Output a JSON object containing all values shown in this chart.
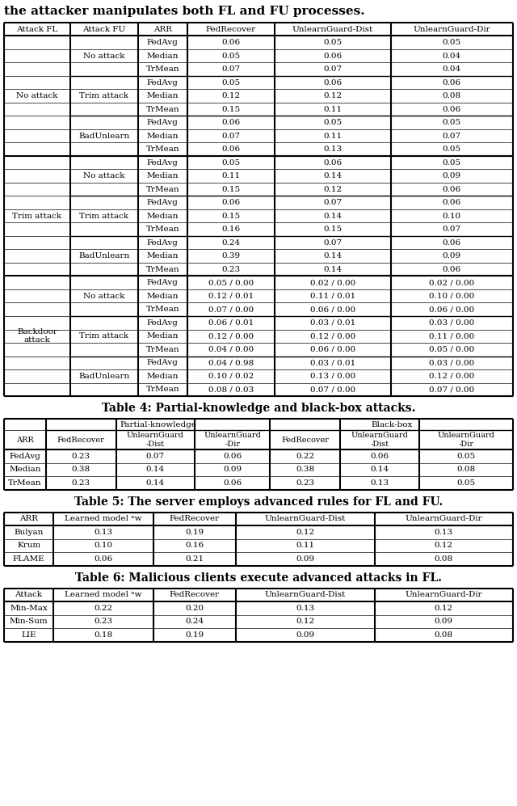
{
  "header_text": "the attacker manipulates both FL and FU processes.",
  "table4_title": "Table 4: Partial-knowledge and black-box attacks.",
  "table5_title": "Table 5: The server employs advanced rules for FL and FU.",
  "table6_title": "Table 6: Malicious clients execute advanced attacks in FL.",
  "table3_col_headers": [
    "Attack FL",
    "Attack FU",
    "ARR",
    "FedRecover",
    "UnlearnGuard-Dist",
    "UnlearnGuard-Dir"
  ],
  "table3_rows": [
    [
      "No attack",
      "No attack",
      "FedAvg",
      "0.06",
      "0.05",
      "0.05"
    ],
    [
      "No attack",
      "No attack",
      "Median",
      "0.05",
      "0.06",
      "0.04"
    ],
    [
      "No attack",
      "No attack",
      "TrMean",
      "0.07",
      "0.07",
      "0.04"
    ],
    [
      "No attack",
      "Trim attack",
      "FedAvg",
      "0.05",
      "0.06",
      "0.06"
    ],
    [
      "No attack",
      "Trim attack",
      "Median",
      "0.12",
      "0.12",
      "0.08"
    ],
    [
      "No attack",
      "Trim attack",
      "TrMean",
      "0.15",
      "0.11",
      "0.06"
    ],
    [
      "No attack",
      "BadUnlearn",
      "FedAvg",
      "0.06",
      "0.05",
      "0.05"
    ],
    [
      "No attack",
      "BadUnlearn",
      "Median",
      "0.07",
      "0.11",
      "0.07"
    ],
    [
      "No attack",
      "BadUnlearn",
      "TrMean",
      "0.06",
      "0.13",
      "0.05"
    ],
    [
      "Trim attack",
      "No attack",
      "FedAvg",
      "0.05",
      "0.06",
      "0.05"
    ],
    [
      "Trim attack",
      "No attack",
      "Median",
      "0.11",
      "0.14",
      "0.09"
    ],
    [
      "Trim attack",
      "No attack",
      "TrMean",
      "0.15",
      "0.12",
      "0.06"
    ],
    [
      "Trim attack",
      "Trim attack",
      "FedAvg",
      "0.06",
      "0.07",
      "0.06"
    ],
    [
      "Trim attack",
      "Trim attack",
      "Median",
      "0.15",
      "0.14",
      "0.10"
    ],
    [
      "Trim attack",
      "Trim attack",
      "TrMean",
      "0.16",
      "0.15",
      "0.07"
    ],
    [
      "Trim attack",
      "BadUnlearn",
      "FedAvg",
      "0.24",
      "0.07",
      "0.06"
    ],
    [
      "Trim attack",
      "BadUnlearn",
      "Median",
      "0.39",
      "0.14",
      "0.09"
    ],
    [
      "Trim attack",
      "BadUnlearn",
      "TrMean",
      "0.23",
      "0.14",
      "0.06"
    ],
    [
      "Backdoor\nattack",
      "No attack",
      "FedAvg",
      "0.05 / 0.00",
      "0.02 / 0.00",
      "0.02 / 0.00"
    ],
    [
      "Backdoor\nattack",
      "No attack",
      "Median",
      "0.12 / 0.01",
      "0.11 / 0.01",
      "0.10 / 0.00"
    ],
    [
      "Backdoor\nattack",
      "No attack",
      "TrMean",
      "0.07 / 0.00",
      "0.06 / 0.00",
      "0.06 / 0.00"
    ],
    [
      "Backdoor\nattack",
      "Trim attack",
      "FedAvg",
      "0.06 / 0.01",
      "0.03 / 0.01",
      "0.03 / 0.00"
    ],
    [
      "Backdoor\nattack",
      "Trim attack",
      "Median",
      "0.12 / 0.00",
      "0.12 / 0.00",
      "0.11 / 0.00"
    ],
    [
      "Backdoor\nattack",
      "Trim attack",
      "TrMean",
      "0.04 / 0.00",
      "0.06 / 0.00",
      "0.05 / 0.00"
    ],
    [
      "Backdoor\nattack",
      "BadUnlearn",
      "FedAvg",
      "0.04 / 0.98",
      "0.03 / 0.01",
      "0.03 / 0.00"
    ],
    [
      "Backdoor\nattack",
      "BadUnlearn",
      "Median",
      "0.10 / 0.02",
      "0.13 / 0.00",
      "0.12 / 0.00"
    ],
    [
      "Backdoor\nattack",
      "BadUnlearn",
      "TrMean",
      "0.08 / 0.03",
      "0.07 / 0.00",
      "0.07 / 0.00"
    ]
  ],
  "table3_fl_groups": [
    [
      0,
      9,
      "No attack"
    ],
    [
      9,
      18,
      "Trim attack"
    ],
    [
      18,
      27,
      "Backdoor\nattack"
    ]
  ],
  "table3_fu_groups": [
    [
      0,
      3,
      "No attack"
    ],
    [
      3,
      6,
      "Trim attack"
    ],
    [
      6,
      9,
      "BadUnlearn"
    ],
    [
      9,
      12,
      "No attack"
    ],
    [
      12,
      15,
      "Trim attack"
    ],
    [
      15,
      18,
      "BadUnlearn"
    ],
    [
      18,
      21,
      "No attack"
    ],
    [
      21,
      24,
      "Trim attack"
    ],
    [
      24,
      27,
      "BadUnlearn"
    ]
  ],
  "table4_col_headers": [
    "ARR",
    "FedRecover",
    "UnlearnGuard\n-Dist",
    "UnlearnGuard\n-Dir",
    "FedRecover",
    "UnlearnGuard\n-Dist",
    "UnlearnGuard\n-Dir"
  ],
  "table4_rows": [
    [
      "FedAvg",
      "0.23",
      "0.07",
      "0.06",
      "0.22",
      "0.06",
      "0.05"
    ],
    [
      "Median",
      "0.38",
      "0.14",
      "0.09",
      "0.38",
      "0.14",
      "0.08"
    ],
    [
      "TrMean",
      "0.23",
      "0.14",
      "0.06",
      "0.23",
      "0.13",
      "0.05"
    ]
  ],
  "table5_col_headers": [
    "ARR",
    "Learned model ⁿw",
    "FedRecover",
    "UnlearnGuard-Dist",
    "UnlearnGuard-Dir"
  ],
  "table5_rows": [
    [
      "Bulyan",
      "0.13",
      "0.19",
      "0.12",
      "0.13"
    ],
    [
      "Krum",
      "0.10",
      "0.16",
      "0.11",
      "0.12"
    ],
    [
      "FLAME",
      "0.06",
      "0.21",
      "0.09",
      "0.08"
    ]
  ],
  "table6_col_headers": [
    "Attack",
    "Learned model ⁿw",
    "FedRecover",
    "UnlearnGuard-Dist",
    "UnlearnGuard-Dir"
  ],
  "table6_rows": [
    [
      "Min-Max",
      "0.22",
      "0.20",
      "0.13",
      "0.12"
    ],
    [
      "Min-Sum",
      "0.23",
      "0.24",
      "0.12",
      "0.09"
    ],
    [
      "LIE",
      "0.18",
      "0.19",
      "0.09",
      "0.08"
    ]
  ]
}
